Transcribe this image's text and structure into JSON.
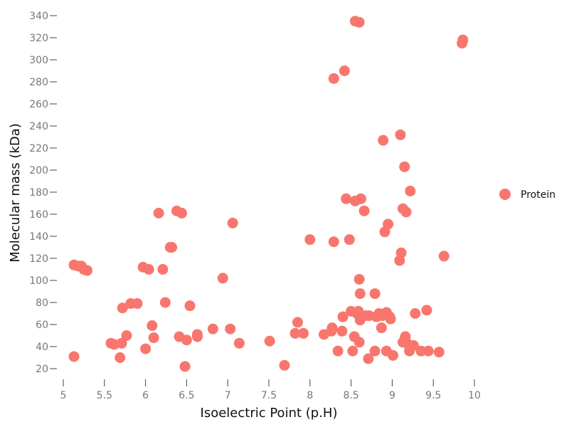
{
  "chart_data": {
    "type": "scatter",
    "title": "",
    "xlabel": "Isoelectric Point (p.H)",
    "ylabel": "Molecular mass (kDa)",
    "xlim": [
      4.95,
      10.25
    ],
    "ylim": [
      10,
      345
    ],
    "x_ticks": [
      5,
      5.5,
      6,
      6.5,
      7,
      7.5,
      8,
      8.5,
      9,
      9.5,
      10
    ],
    "x_tick_labels": [
      "5",
      "5.5",
      "6",
      "6.5",
      "7",
      "7.5",
      "8",
      "8.5",
      "9",
      "9.5",
      "10"
    ],
    "y_ticks": [
      20,
      40,
      60,
      80,
      100,
      120,
      140,
      160,
      180,
      200,
      220,
      240,
      260,
      280,
      300,
      320,
      340
    ],
    "y_tick_labels": [
      "20",
      "40",
      "60",
      "80",
      "100",
      "120",
      "140",
      "160",
      "180",
      "200",
      "220",
      "240",
      "260",
      "280",
      "300",
      "320",
      "340"
    ],
    "grid": false,
    "legend_position": "right",
    "series": [
      {
        "name": "Protein",
        "color": "#f8766d",
        "points": [
          [
            5.13,
            31
          ],
          [
            5.13,
            114
          ],
          [
            5.18,
            113
          ],
          [
            5.22,
            113
          ],
          [
            5.25,
            110
          ],
          [
            5.29,
            109
          ],
          [
            5.58,
            43
          ],
          [
            5.62,
            42
          ],
          [
            5.69,
            30
          ],
          [
            5.71,
            43
          ],
          [
            5.72,
            75
          ],
          [
            5.77,
            50
          ],
          [
            5.82,
            79
          ],
          [
            5.9,
            79
          ],
          [
            5.97,
            112
          ],
          [
            6.0,
            38
          ],
          [
            6.04,
            110
          ],
          [
            6.08,
            59
          ],
          [
            6.1,
            48
          ],
          [
            6.16,
            161
          ],
          [
            6.21,
            110
          ],
          [
            6.24,
            80
          ],
          [
            6.3,
            130
          ],
          [
            6.32,
            130
          ],
          [
            6.38,
            163
          ],
          [
            6.41,
            49
          ],
          [
            6.44,
            161
          ],
          [
            6.48,
            22
          ],
          [
            6.5,
            46
          ],
          [
            6.54,
            77
          ],
          [
            6.63,
            51
          ],
          [
            6.63,
            49
          ],
          [
            6.82,
            56
          ],
          [
            6.94,
            102
          ],
          [
            7.03,
            56
          ],
          [
            7.06,
            152
          ],
          [
            7.14,
            43
          ],
          [
            7.51,
            45
          ],
          [
            7.69,
            23
          ],
          [
            7.82,
            52
          ],
          [
            7.85,
            62
          ],
          [
            7.92,
            52
          ],
          [
            8.0,
            137
          ],
          [
            8.17,
            51
          ],
          [
            8.26,
            54
          ],
          [
            8.27,
            57
          ],
          [
            8.29,
            135
          ],
          [
            8.29,
            283
          ],
          [
            8.34,
            36
          ],
          [
            8.39,
            54
          ],
          [
            8.4,
            67
          ],
          [
            8.42,
            290
          ],
          [
            8.44,
            174
          ],
          [
            8.48,
            137
          ],
          [
            8.5,
            72
          ],
          [
            8.52,
            36
          ],
          [
            8.54,
            49
          ],
          [
            8.55,
            335
          ],
          [
            8.55,
            172
          ],
          [
            8.57,
            70
          ],
          [
            8.59,
            72
          ],
          [
            8.6,
            334
          ],
          [
            8.6,
            101
          ],
          [
            8.6,
            44
          ],
          [
            8.61,
            88
          ],
          [
            8.61,
            64
          ],
          [
            8.62,
            174
          ],
          [
            8.66,
            163
          ],
          [
            8.68,
            68
          ],
          [
            8.71,
            29
          ],
          [
            8.72,
            68
          ],
          [
            8.79,
            36
          ],
          [
            8.79,
            88
          ],
          [
            8.81,
            67
          ],
          [
            8.84,
            70
          ],
          [
            8.87,
            57
          ],
          [
            8.88,
            68
          ],
          [
            8.89,
            227
          ],
          [
            8.91,
            144
          ],
          [
            8.93,
            36
          ],
          [
            8.93,
            71
          ],
          [
            8.95,
            151
          ],
          [
            8.97,
            67
          ],
          [
            8.98,
            65
          ],
          [
            9.01,
            32
          ],
          [
            9.09,
            118
          ],
          [
            9.1,
            232
          ],
          [
            9.11,
            125
          ],
          [
            9.13,
            44
          ],
          [
            9.13,
            165
          ],
          [
            9.15,
            203
          ],
          [
            9.16,
            49
          ],
          [
            9.17,
            162
          ],
          [
            9.18,
            43
          ],
          [
            9.21,
            36
          ],
          [
            9.22,
            181
          ],
          [
            9.26,
            41
          ],
          [
            9.28,
            70
          ],
          [
            9.35,
            36
          ],
          [
            9.42,
            73
          ],
          [
            9.44,
            36
          ],
          [
            9.57,
            35
          ],
          [
            9.63,
            122
          ],
          [
            9.85,
            315
          ],
          [
            9.86,
            318
          ]
        ]
      }
    ]
  }
}
